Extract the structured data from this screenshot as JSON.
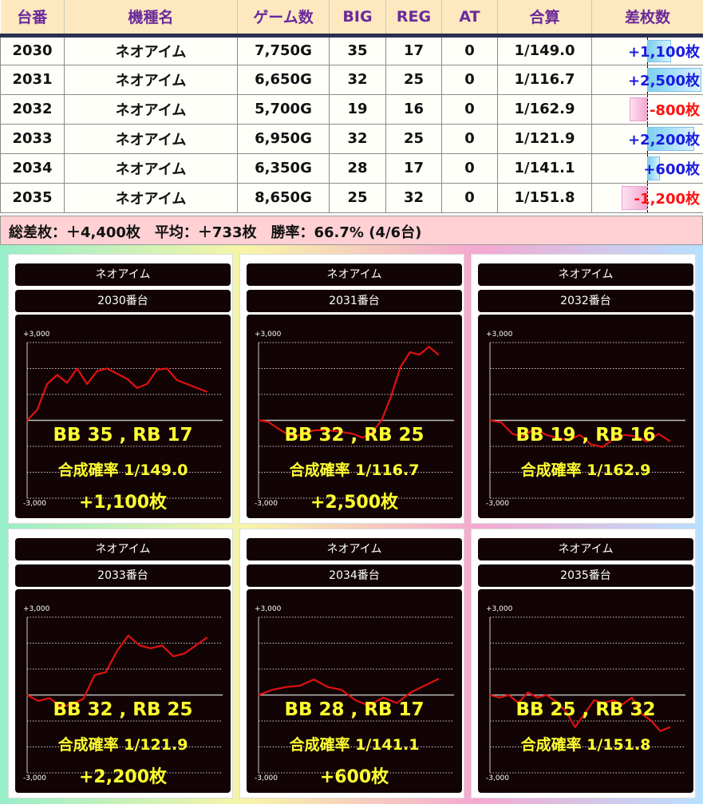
{
  "table": {
    "headers": [
      "台番",
      "機種名",
      "ゲーム数",
      "BIG",
      "REG",
      "AT",
      "合算",
      "差枚数"
    ],
    "rows": [
      {
        "no": "2030",
        "name": "ネオアイム",
        "games": "7,750G",
        "big": "35",
        "reg": "17",
        "at": "0",
        "prob": "1/149.0",
        "diff": "+1,100枚",
        "diff_value": 1100
      },
      {
        "no": "2031",
        "name": "ネオアイム",
        "games": "6,650G",
        "big": "32",
        "reg": "25",
        "at": "0",
        "prob": "1/116.7",
        "diff": "+2,500枚",
        "diff_value": 2500
      },
      {
        "no": "2032",
        "name": "ネオアイム",
        "games": "5,700G",
        "big": "19",
        "reg": "16",
        "at": "0",
        "prob": "1/162.9",
        "diff": "-800枚",
        "diff_value": -800
      },
      {
        "no": "2033",
        "name": "ネオアイム",
        "games": "6,950G",
        "big": "32",
        "reg": "25",
        "at": "0",
        "prob": "1/121.9",
        "diff": "+2,200枚",
        "diff_value": 2200
      },
      {
        "no": "2034",
        "name": "ネオアイム",
        "games": "6,350G",
        "big": "28",
        "reg": "17",
        "at": "0",
        "prob": "1/141.1",
        "diff": "+600枚",
        "diff_value": 600
      },
      {
        "no": "2035",
        "name": "ネオアイム",
        "games": "8,650G",
        "big": "25",
        "reg": "32",
        "at": "0",
        "prob": "1/151.8",
        "diff": "-1,200枚",
        "diff_value": -1200
      }
    ]
  },
  "summary": "総差枚：＋4,400枚　平均：＋733枚　勝率：66.7% (4/6台)",
  "colors": {
    "header_text": "#6a2a9a",
    "positive": "#1a1adf",
    "negative": "#ff1010",
    "line": "#e01010",
    "chart_text": "#ffff30"
  },
  "chart_data": [
    {
      "type": "line",
      "machine": "ネオアイム",
      "unit": "2030番台",
      "ylim": [
        -3000,
        3000
      ],
      "ytick_top": "+3,000",
      "ytick_bottom": "-3,000",
      "grid": true,
      "bb_rb": "BB 35 , RB 17",
      "prob": "合成確率  1/149.0",
      "diff": "+1,100枚",
      "values": [
        0,
        400,
        1400,
        1750,
        1450,
        2000,
        1400,
        1900,
        2000,
        1800,
        1600,
        1250,
        1400,
        1950,
        2000,
        1550,
        1400,
        1250,
        1100
      ]
    },
    {
      "type": "line",
      "machine": "ネオアイム",
      "unit": "2031番台",
      "ylim": [
        -3000,
        3000
      ],
      "ytick_top": "+3,000",
      "ytick_bottom": "-3,000",
      "grid": true,
      "bb_rb": "BB 32 , RB 25",
      "prob": "合成確率  1/116.7",
      "diff": "+2,500枚",
      "values": [
        0,
        -50,
        -300,
        -520,
        -620,
        -460,
        -380,
        -380,
        -410,
        -460,
        -520,
        -670,
        -460,
        0,
        930,
        2060,
        2630,
        2530,
        2840,
        2530
      ]
    },
    {
      "type": "line",
      "machine": "ネオアイム",
      "unit": "2032番台",
      "ylim": [
        -3000,
        3000
      ],
      "ytick_top": "+3,000",
      "ytick_bottom": "-3,000",
      "grid": true,
      "bb_rb": "BB 19 , RB 16",
      "prob": "合成確率  1/162.9",
      "diff": "",
      "values": [
        0,
        -80,
        -520,
        -620,
        -300,
        -560,
        -670,
        -770,
        -560,
        -930,
        -1030,
        -720,
        -560,
        -620,
        -820,
        -520,
        -800
      ]
    },
    {
      "type": "line",
      "machine": "ネオアイム",
      "unit": "2033番台",
      "ylim": [
        -3000,
        3000
      ],
      "ytick_top": "+3,000",
      "ytick_bottom": "-3,000",
      "grid": true,
      "bb_rb": "BB 32 , RB 25",
      "prob": "合成確率  1/121.9",
      "diff": "+2,200枚",
      "values": [
        0,
        -230,
        -120,
        -460,
        -360,
        -150,
        770,
        880,
        1700,
        2290,
        1910,
        1800,
        1910,
        1490,
        1600,
        1910,
        2220
      ]
    },
    {
      "type": "line",
      "machine": "ネオアイム",
      "unit": "2034番台",
      "ylim": [
        -3000,
        3000
      ],
      "ytick_top": "+3,000",
      "ytick_bottom": "-3,000",
      "grid": true,
      "bb_rb": "BB 28 , RB 17",
      "prob": "合成確率  1/141.1",
      "diff": "+600枚",
      "values": [
        0,
        200,
        310,
        360,
        600,
        310,
        200,
        -200,
        -410,
        -100,
        -310,
        100,
        360,
        620
      ]
    },
    {
      "type": "line",
      "machine": "ネオアイム",
      "unit": "2035番台",
      "ylim": [
        -3000,
        3000
      ],
      "ytick_top": "+3,000",
      "ytick_bottom": "-3,000",
      "grid": true,
      "bb_rb": "BB 25 , RB 32",
      "prob": "合成確率  1/151.8",
      "diff": "",
      "values": [
        0,
        -100,
        0,
        -310,
        100,
        -100,
        0,
        -260,
        -620,
        -1240,
        -720,
        -200,
        -310,
        -200,
        -360,
        -100,
        -720,
        -980,
        -1390,
        -1240
      ]
    }
  ]
}
